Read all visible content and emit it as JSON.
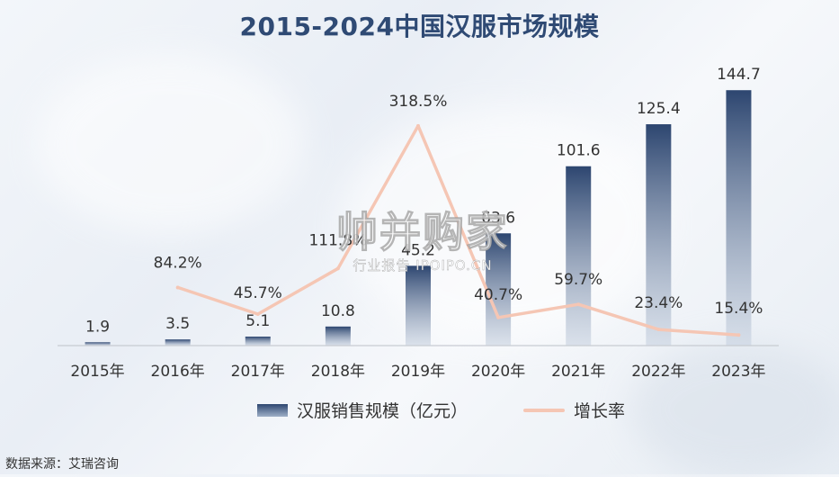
{
  "title": "2015-2024中国汉服市场规模",
  "source": "数据来源：艾瑞咨询",
  "watermark": {
    "main": "帅并购家",
    "sub": "行业报告 IPOIPO.CN"
  },
  "legend": {
    "bar_label": "汉服销售规模（亿元）",
    "line_label": "增长率"
  },
  "colors": {
    "bar_top": "#2d4670",
    "bar_bottom": "#c9d3e1",
    "line": "#f5c6b4",
    "title": "#2f4a74",
    "axis": "#c8ccd2"
  },
  "chart_data": {
    "type": "bar",
    "categories": [
      "2015年",
      "2016年",
      "2017年",
      "2018年",
      "2019年",
      "2020年",
      "2021年",
      "2022年",
      "2023年"
    ],
    "series": [
      {
        "name": "汉服销售规模（亿元）",
        "type": "bar",
        "values": [
          1.9,
          3.5,
          5.1,
          10.8,
          45.2,
          63.6,
          101.6,
          125.4,
          144.7
        ],
        "labels": [
          "1.9",
          "3.5",
          "5.1",
          "10.8",
          "45.2",
          "63.6",
          "101.6",
          "125.4",
          "144.7"
        ]
      },
      {
        "name": "增长率",
        "type": "line",
        "values": [
          null,
          84.2,
          45.7,
          111.8,
          318.5,
          40.7,
          59.7,
          23.4,
          15.4
        ],
        "labels": [
          "",
          "84.2%",
          "45.7%",
          "111.8%",
          "318.5%",
          "40.7%",
          "59.7%",
          "23.4%",
          "15.4%"
        ]
      }
    ],
    "ylim_bar": [
      0,
      155
    ],
    "ylim_line": [
      0,
      360
    ],
    "grid": false,
    "legend_position": "bottom"
  }
}
